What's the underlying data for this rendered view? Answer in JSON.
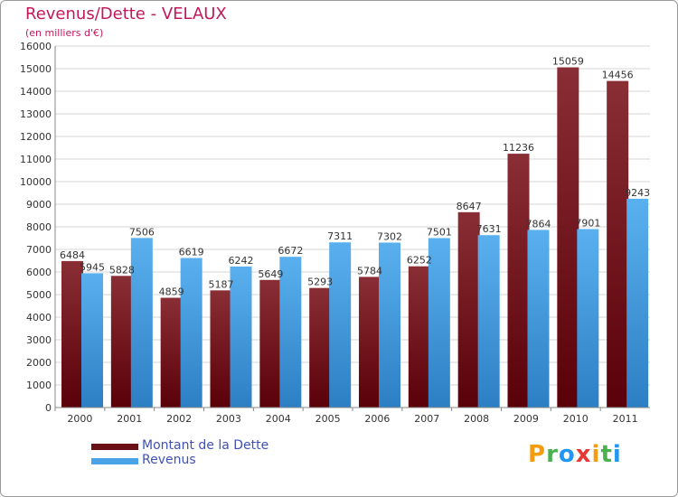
{
  "header": {
    "title": "Revenus/Dette - VELAUX",
    "subtitle": "(en milliers d'€)"
  },
  "colors": {
    "debt": "#7a1b22",
    "revenue": "#4aa3e6",
    "title": "#c2185b",
    "legend_text": "#3f51b5"
  },
  "legend": {
    "items": [
      {
        "label": "Montant de la Dette",
        "color": "#6b0f16"
      },
      {
        "label": "Revenus",
        "color": "#4aa3e6"
      }
    ]
  },
  "logo": {
    "text": "Proxiti"
  },
  "chart_data": {
    "type": "bar",
    "title": "Revenus/Dette - VELAUX",
    "ylabel": "(en milliers d'€)",
    "categories": [
      "2000",
      "2001",
      "2002",
      "2003",
      "2004",
      "2005",
      "2006",
      "2007",
      "2008",
      "2009",
      "2010",
      "2011"
    ],
    "series": [
      {
        "name": "Montant de la Dette",
        "values": [
          6484,
          5828,
          4859,
          5187,
          5649,
          5293,
          5784,
          6252,
          8647,
          11236,
          15059,
          14456
        ],
        "labels": [
          "6484",
          "5828",
          "4859",
          "5187",
          "5649",
          "5293",
          "5784",
          "6252",
          "8647",
          "11236",
          "15059",
          "14456"
        ]
      },
      {
        "name": "Revenus",
        "values": [
          5945,
          7506,
          6619,
          6242,
          6672,
          7311,
          7302,
          7501,
          7631,
          7864,
          7901,
          9243
        ],
        "labels": [
          "5945",
          "7506",
          "6619",
          "6242",
          "6672",
          "7311",
          "7302",
          "7501",
          "7631",
          "7864",
          "7901",
          "9243"
        ]
      }
    ],
    "ylim": [
      0,
      16000
    ],
    "yticks": [
      "0",
      "1000",
      "2000",
      "3000",
      "4000",
      "5000",
      "6000",
      "7000",
      "8000",
      "9000",
      "10000",
      "11000",
      "12000",
      "13000",
      "14000",
      "15000",
      "16000"
    ],
    "grid": true
  }
}
